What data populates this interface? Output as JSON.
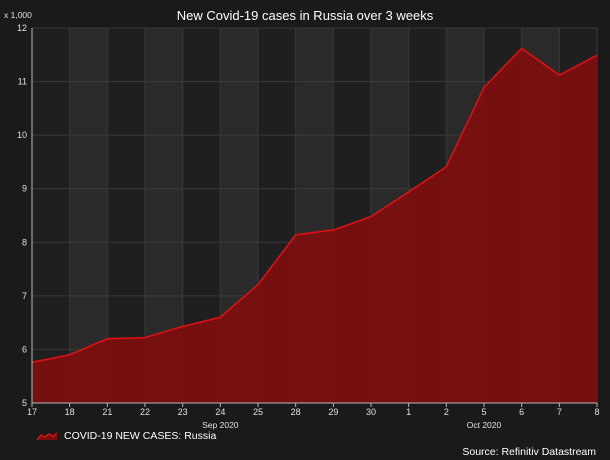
{
  "chart_data": {
    "type": "area",
    "title": "New Covid-19 cases in Russia over 3 weeks",
    "y_unit_label": "x 1,000",
    "ylim": [
      5,
      12
    ],
    "yticks": [
      5,
      6,
      7,
      8,
      9,
      10,
      11,
      12
    ],
    "categories": [
      "17",
      "18",
      "21",
      "22",
      "23",
      "24",
      "25",
      "28",
      "29",
      "30",
      "1",
      "2",
      "5",
      "6",
      "7",
      "8"
    ],
    "month_labels": [
      {
        "label": "Sep 2020",
        "at_category": "24"
      },
      {
        "label": "Oct 2020",
        "at_category": "5"
      }
    ],
    "series": [
      {
        "name": "COVID-19 NEW CASES: Russia",
        "values": [
          5.76,
          5.9,
          6.2,
          6.22,
          6.43,
          6.6,
          7.21,
          8.14,
          8.23,
          8.48,
          8.94,
          9.41,
          10.89,
          11.62,
          11.12,
          11.49
        ]
      }
    ],
    "grid": true,
    "legend_position": "bottom-left",
    "colors": {
      "background": "#1a1a1a",
      "plot_band_dark": "#1f1f1f",
      "plot_band_light": "#2a2a2a",
      "grid": "#3a3a3a",
      "area_fill": "#7a0f10",
      "line": "#e01010"
    }
  },
  "source_text": "Source: Refinitiv Datastream"
}
